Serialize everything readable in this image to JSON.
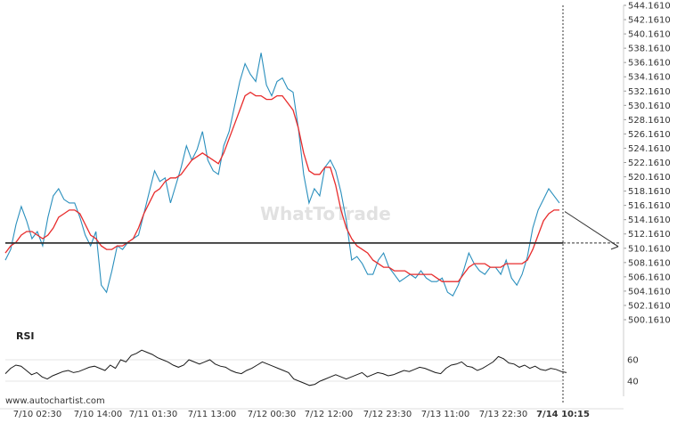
{
  "chart_data": [
    {
      "type": "line",
      "subtype": "candlestick-price",
      "ylim": [
        500.161,
        544.161
      ],
      "y_ticks": [
        "544.1610",
        "542.1610",
        "540.1610",
        "538.1610",
        "536.1610",
        "534.1610",
        "532.1610",
        "530.1610",
        "528.1610",
        "526.1610",
        "524.1610",
        "522.1610",
        "520.1610",
        "518.1610",
        "516.1610",
        "514.1610",
        "512.1610",
        "510.1610",
        "508.1610",
        "506.1610",
        "504.1610",
        "502.1610",
        "500.1610"
      ],
      "x_ticks": [
        "7/10 02:30",
        "7/10 14:00",
        "7/11 01:30",
        "7/11 13:00",
        "7/12 00:30",
        "7/12 12:00",
        "7/12 23:30",
        "7/13 11:00",
        "7/13 22:30",
        "7/14 10:15"
      ],
      "support_level": 510.9,
      "forecast_arrow": {
        "from": 515.3,
        "to": 510.4
      },
      "series": [
        {
          "values": [
            508.5,
            510.0,
            513.5,
            516.0,
            514.0,
            511.5,
            512.5,
            510.5,
            514.5,
            517.5,
            518.5,
            517.0,
            516.5,
            516.5,
            514.5,
            512.0,
            510.5,
            512.5,
            505.0,
            504.0,
            507.0,
            510.5,
            510.0,
            511.0,
            511.5,
            512.0,
            515.0,
            518.0,
            521.0,
            519.5,
            520.0,
            516.5,
            519.0,
            521.5,
            524.5,
            522.5,
            524.0,
            526.5,
            522.5,
            521.0,
            520.5,
            524.5,
            526.5,
            530.0,
            533.5,
            536.0,
            534.5,
            533.5,
            537.5,
            533.0,
            531.5,
            533.5,
            534.0,
            532.5,
            532.0,
            527.0,
            520.5,
            516.5,
            518.5,
            517.5,
            521.5,
            522.5,
            521.0,
            518.0,
            514.0,
            508.5,
            509.0,
            508.0,
            506.5,
            506.5,
            508.5,
            509.5,
            507.5,
            506.5,
            505.5,
            506.0,
            506.5,
            506.0,
            507.0,
            506.0,
            505.5,
            505.5,
            506.0,
            504.0,
            503.5,
            505.0,
            507.0,
            509.5,
            508.0,
            507.0,
            506.5,
            507.5,
            507.5,
            506.5,
            508.5,
            506.0,
            505.0,
            506.5,
            509.0,
            513.0,
            515.5,
            517.0,
            518.5,
            517.5,
            516.5
          ]
        },
        {
          "values": [
            509.5,
            510.5,
            511.0,
            512.0,
            512.5,
            512.5,
            512.0,
            511.5,
            512.0,
            513.0,
            514.5,
            515.0,
            515.5,
            515.5,
            515.0,
            513.5,
            512.0,
            511.5,
            510.5,
            510.0,
            510.0,
            510.5,
            510.5,
            511.0,
            511.5,
            513.0,
            515.0,
            516.5,
            518.0,
            518.5,
            519.5,
            520.0,
            520.0,
            520.5,
            521.5,
            522.5,
            523.0,
            523.5,
            523.0,
            522.5,
            522.0,
            523.5,
            525.5,
            527.5,
            529.5,
            531.5,
            532.0,
            531.5,
            531.5,
            531.0,
            531.0,
            531.5,
            531.5,
            530.5,
            529.5,
            527.0,
            523.5,
            521.0,
            520.5,
            520.5,
            521.5,
            521.5,
            519.0,
            515.5,
            513.0,
            511.5,
            510.5,
            510.0,
            509.5,
            508.5,
            508.0,
            507.5,
            507.5,
            507.0,
            507.0,
            507.0,
            506.5,
            506.5,
            506.5,
            506.5,
            506.5,
            506.0,
            505.5,
            505.5,
            505.5,
            505.5,
            506.5,
            507.5,
            508.0,
            508.0,
            508.0,
            507.5,
            507.5,
            507.5,
            508.0,
            508.0,
            508.0,
            508.0,
            508.5,
            510.0,
            512.0,
            514.0,
            515.0,
            515.5,
            515.5
          ]
        }
      ]
    },
    {
      "type": "line",
      "title": "RSI",
      "ylim": [
        30,
        75
      ],
      "y_ticks": [
        "60",
        "40"
      ],
      "series": [
        {
          "values": [
            47,
            52,
            55,
            54,
            50,
            46,
            48,
            44,
            42,
            45,
            47,
            49,
            50,
            48,
            49,
            51,
            53,
            54,
            52,
            50,
            55,
            52,
            60,
            58,
            64,
            66,
            69,
            67,
            65,
            62,
            60,
            58,
            55,
            53,
            55,
            60,
            58,
            56,
            58,
            60,
            56,
            54,
            53,
            50,
            48,
            47,
            50,
            52,
            55,
            58,
            56,
            54,
            52,
            50,
            48,
            42,
            40,
            38,
            36,
            37,
            40,
            42,
            44,
            46,
            44,
            42,
            44,
            46,
            48,
            44,
            46,
            48,
            47,
            45,
            46,
            48,
            50,
            49,
            51,
            53,
            52,
            50,
            48,
            47,
            52,
            55,
            56,
            58,
            54,
            53,
            50,
            52,
            55,
            58,
            63,
            61,
            57,
            56,
            53,
            55,
            52,
            54,
            51,
            50,
            52,
            51,
            49,
            48
          ]
        }
      ]
    }
  ],
  "branding": {
    "watermark": "WhatToTrade",
    "credit": "www.autochartist.com"
  },
  "colors": {
    "price": "#2a8fbd",
    "ma": "#e82c2c",
    "level": "#333333",
    "rsi": "#1a1a1a"
  }
}
